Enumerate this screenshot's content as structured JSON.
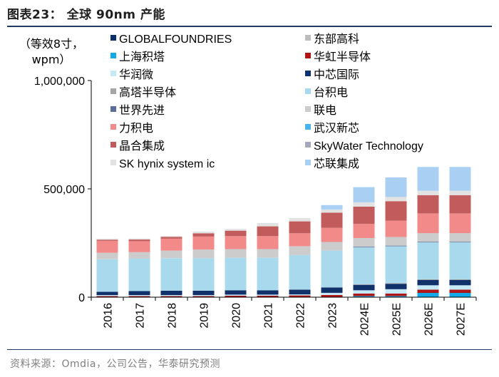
{
  "figure": {
    "title": "图表23：  全球 90nm 产能",
    "unit_line1": "（等效8寸，",
    "unit_line2": "wpm）",
    "source": "资料来源：Omdia，公司公告，华泰研究预测"
  },
  "chart_data": {
    "type": "bar",
    "stacked": true,
    "title": "全球 90nm 产能",
    "ylabel": "等效8寸，wpm",
    "xlabel": "",
    "ylim": [
      0,
      1000000
    ],
    "yticks": [
      0,
      500000,
      1000000
    ],
    "ytick_labels": [
      "0",
      "500,000",
      "1,000,000"
    ],
    "grid": false,
    "legend_position": "top (inside, two columns)",
    "categories": [
      "2016",
      "2017",
      "2018",
      "2019",
      "2020",
      "2021",
      "2022",
      "2023",
      "2024E",
      "2025E",
      "2026E",
      "2027E"
    ],
    "series": [
      {
        "name": "GLOBALFOUNDRIES",
        "color": "#0b2f6b",
        "values": [
          0,
          0,
          0,
          0,
          0,
          0,
          0,
          0,
          0,
          0,
          0,
          0
        ]
      },
      {
        "name": "东部高科",
        "color": "#bdbdbd",
        "values": [
          0,
          0,
          0,
          0,
          0,
          0,
          0,
          0,
          0,
          0,
          0,
          0
        ]
      },
      {
        "name": "上海积塔",
        "color": "#11a9e6",
        "values": [
          0,
          0,
          0,
          0,
          0,
          0,
          0,
          0,
          5000,
          5000,
          20000,
          20000
        ]
      },
      {
        "name": "华虹半导体",
        "color": "#b01616",
        "values": [
          5000,
          5000,
          5000,
          5000,
          7000,
          7000,
          8000,
          10000,
          12000,
          12000,
          15000,
          15000
        ]
      },
      {
        "name": "华润微",
        "color": "#c6e9f8",
        "values": [
          5000,
          5000,
          5000,
          5000,
          5000,
          5000,
          5000,
          10000,
          15000,
          20000,
          20000,
          20000
        ]
      },
      {
        "name": "中芯国际",
        "color": "#10316a",
        "values": [
          15000,
          18000,
          20000,
          20000,
          20000,
          20000,
          22000,
          25000,
          25000,
          25000,
          25000,
          25000
        ]
      },
      {
        "name": "高塔半导体",
        "color": "#a6a6a6",
        "values": [
          0,
          0,
          0,
          0,
          0,
          0,
          0,
          0,
          3000,
          3000,
          3000,
          3000
        ]
      },
      {
        "name": "台积电",
        "color": "#a9d9ec",
        "values": [
          150000,
          150000,
          150000,
          150000,
          150000,
          150000,
          160000,
          170000,
          170000,
          170000,
          170000,
          170000
        ]
      },
      {
        "name": "世界先进",
        "color": "#5b6e97",
        "values": [
          0,
          0,
          0,
          0,
          0,
          0,
          0,
          0,
          3000,
          3000,
          3000,
          3000
        ]
      },
      {
        "name": "联电",
        "color": "#cccccc",
        "values": [
          30000,
          30000,
          35000,
          40000,
          40000,
          40000,
          40000,
          40000,
          40000,
          40000,
          40000,
          40000
        ]
      },
      {
        "name": "力积电",
        "color": "#f28a8a",
        "values": [
          55000,
          50000,
          55000,
          60000,
          60000,
          60000,
          60000,
          65000,
          65000,
          75000,
          90000,
          90000
        ]
      },
      {
        "name": "武汉新芯",
        "color": "#4ab4ea",
        "values": [
          0,
          0,
          0,
          0,
          0,
          0,
          0,
          0,
          0,
          0,
          0,
          0
        ]
      },
      {
        "name": "晶合集成",
        "color": "#c25b5b",
        "values": [
          5000,
          8000,
          8000,
          15000,
          25000,
          45000,
          55000,
          70000,
          80000,
          90000,
          85000,
          85000
        ]
      },
      {
        "name": "SkyWater Technology",
        "color": "#a4a9bd",
        "values": [
          0,
          0,
          0,
          0,
          0,
          0,
          0,
          0,
          0,
          0,
          0,
          0
        ]
      },
      {
        "name": "SK hynix system ic",
        "color": "#e2e2e2",
        "values": [
          5000,
          5000,
          5000,
          8000,
          8000,
          15000,
          15000,
          15000,
          20000,
          20000,
          20000,
          20000
        ]
      },
      {
        "name": "芯联集成",
        "color": "#a9d0f2",
        "values": [
          0,
          0,
          0,
          0,
          0,
          0,
          0,
          20000,
          70000,
          90000,
          110000,
          110000
        ]
      }
    ]
  }
}
